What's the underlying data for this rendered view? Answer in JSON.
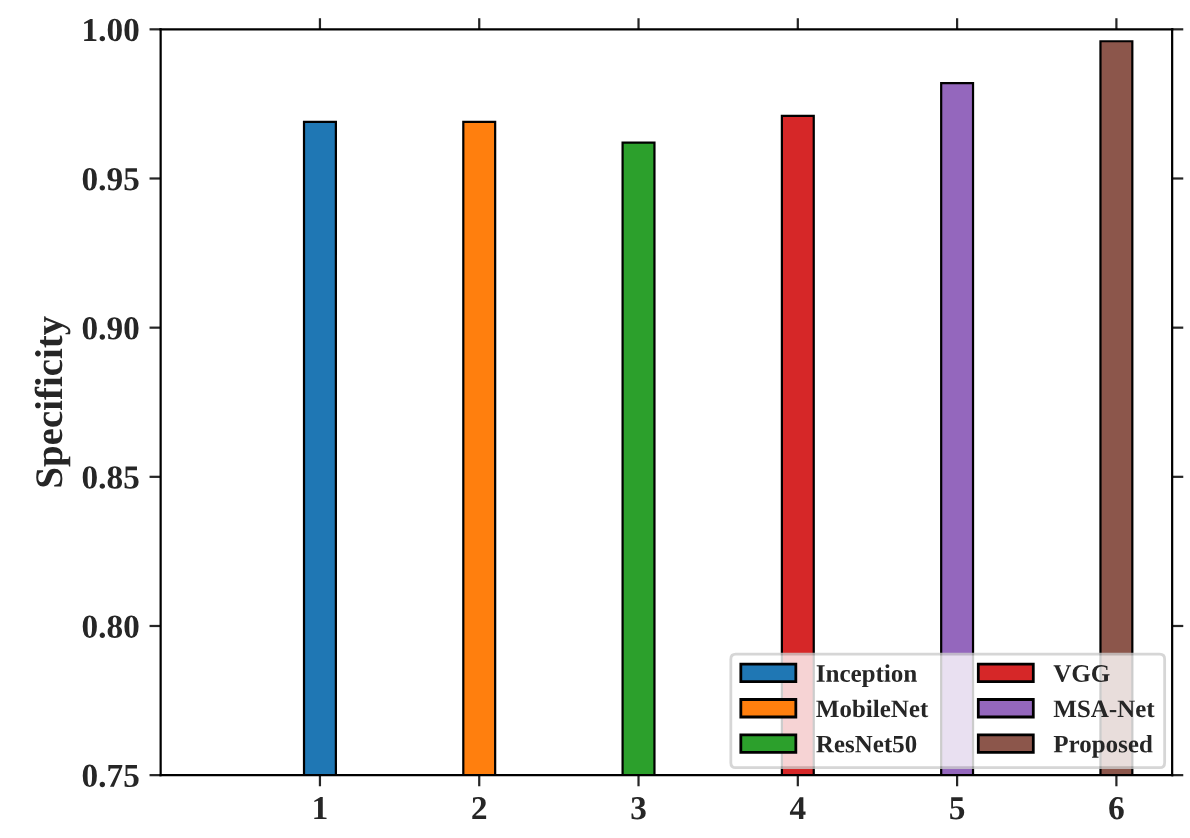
{
  "chart_data": {
    "type": "bar",
    "ylabel": "Specificity",
    "xlim": [
      0,
      6.35
    ],
    "xticks": [
      1,
      2,
      3,
      4,
      5,
      6
    ],
    "ylim": [
      0.75,
      1.0
    ],
    "yticks": [
      {
        "value": 0.75,
        "label": "0.75"
      },
      {
        "value": 0.8,
        "label": "0.80"
      },
      {
        "value": 0.85,
        "label": "0.85"
      },
      {
        "value": 0.9,
        "label": "0.90"
      },
      {
        "value": 0.95,
        "label": "0.95"
      },
      {
        "value": 1.0,
        "label": "1.00"
      }
    ],
    "series": [
      {
        "name": "Inception",
        "color": "#1f77b4",
        "x": [
          1
        ],
        "values": [
          0.969
        ]
      },
      {
        "name": "MobileNet",
        "color": "#ff7f0e",
        "x": [
          2
        ],
        "values": [
          0.969
        ]
      },
      {
        "name": "ResNet50",
        "color": "#2ca02c",
        "x": [
          3
        ],
        "values": [
          0.962
        ]
      },
      {
        "name": "VGG",
        "color": "#d62728",
        "x": [
          4
        ],
        "values": [
          0.971
        ]
      },
      {
        "name": "MSA-Net",
        "color": "#9467bd",
        "x": [
          5
        ],
        "values": [
          0.982
        ]
      },
      {
        "name": "Proposed",
        "color": "#8c564b",
        "x": [
          6
        ],
        "values": [
          0.996
        ]
      }
    ],
    "legend": "bottom right",
    "grid": false
  }
}
